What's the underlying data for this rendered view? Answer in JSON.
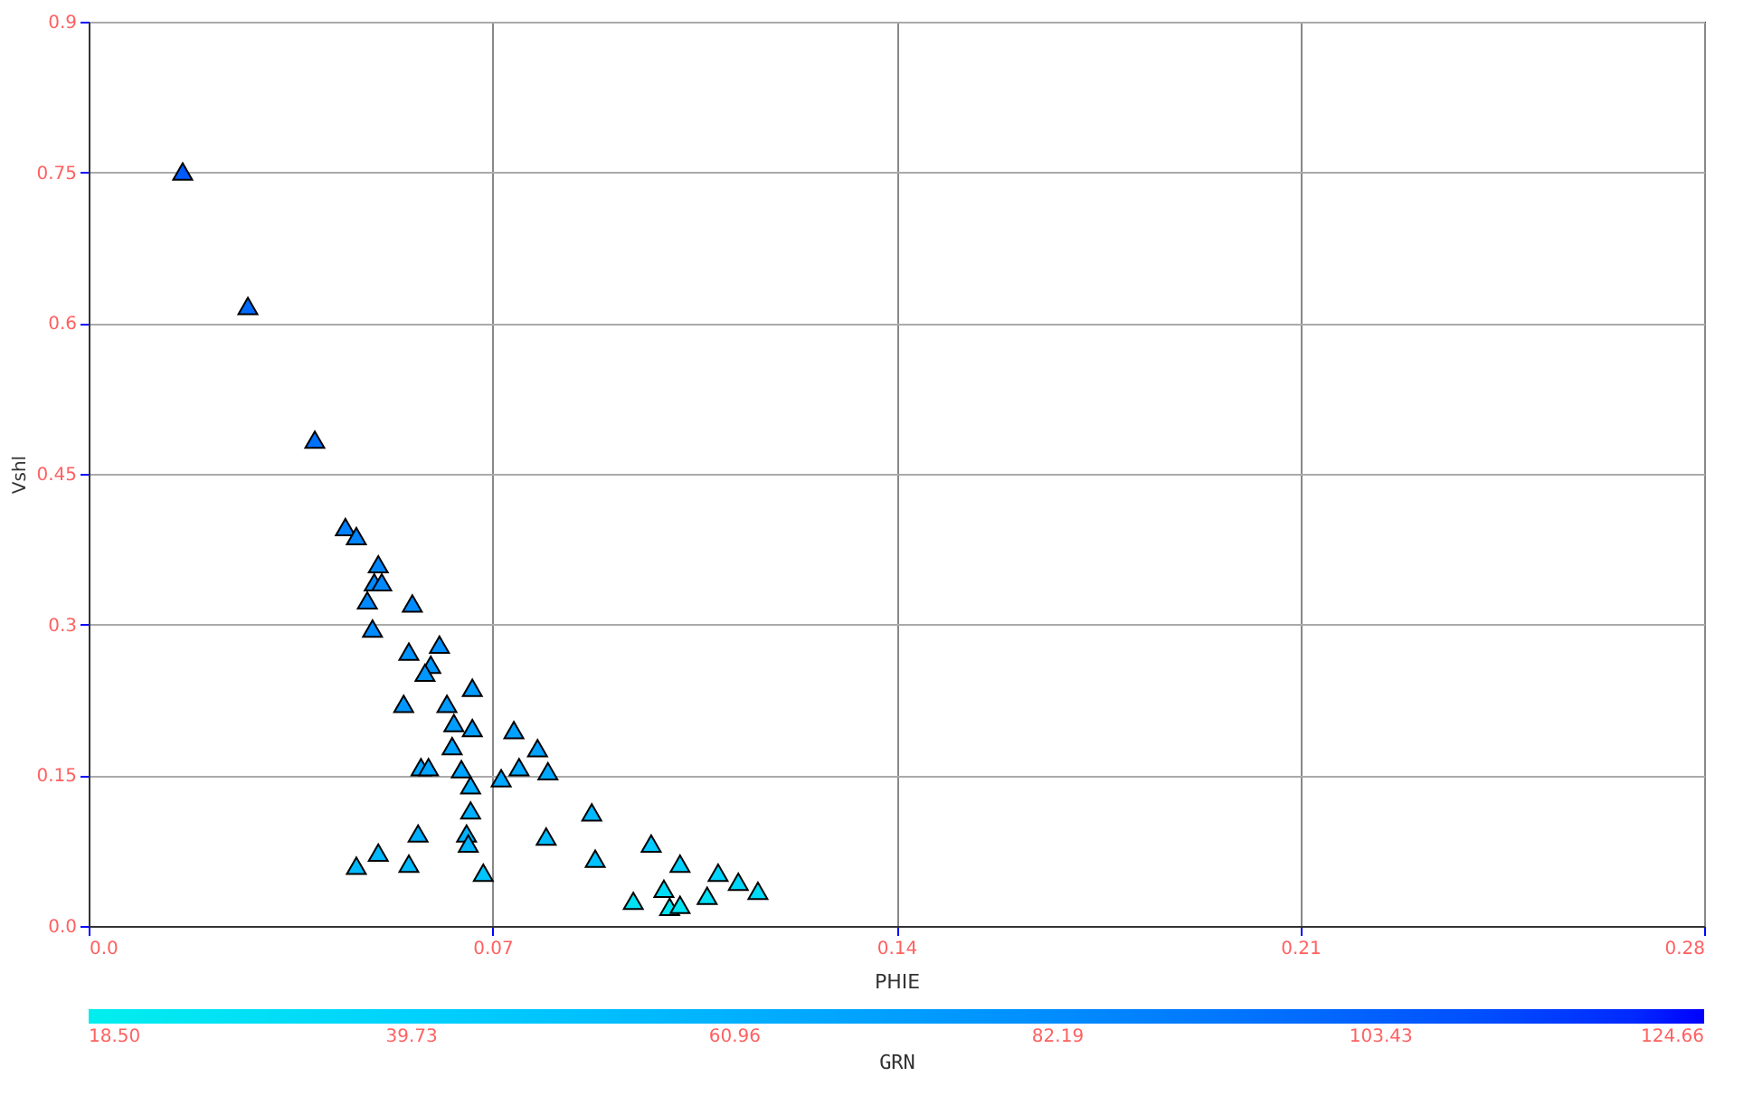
{
  "chart_data": {
    "type": "scatter",
    "xlabel": "PHIE",
    "ylabel": "Vshl",
    "clabel": "GRN",
    "xlim": [
      0,
      0.28
    ],
    "ylim": [
      0,
      0.9
    ],
    "xticks": [
      {
        "value": 0,
        "label": "0.0"
      },
      0.07,
      0.14,
      0.21,
      0.28
    ],
    "yticks": [
      {
        "value": 0,
        "label": "0.0"
      },
      0.15,
      0.3,
      0.45,
      0.6,
      0.75,
      0.9
    ],
    "clim": [
      18.5,
      124.66
    ],
    "cticks": [
      {
        "value": 18.5,
        "label": "18.50"
      },
      39.73,
      60.96,
      82.19,
      103.43,
      124.66
    ],
    "grid": true,
    "marker": "triangle",
    "series": [
      {
        "x": [
          0.0163,
          0.0276,
          0.0392,
          0.0445,
          0.0464,
          0.0502,
          0.0495,
          0.0508,
          0.0483,
          0.0561,
          0.0492,
          0.0555,
          0.0608,
          0.0593,
          0.0583,
          0.0665,
          0.0546,
          0.0621,
          0.0633,
          0.0665,
          0.0737,
          0.0778,
          0.063,
          0.0576,
          0.0589,
          0.0646,
          0.0746,
          0.0796,
          0.0715,
          0.0662,
          0.0662,
          0.0872,
          0.0571,
          0.0655,
          0.0658,
          0.0793,
          0.0502,
          0.0878,
          0.0464,
          0.0555,
          0.0975,
          0.0684,
          0.1025,
          0.1091,
          0.1126,
          0.116,
          0.1072,
          0.0997,
          0.0944,
          0.1007,
          0.1025
        ],
        "values": [
          0.751,
          0.617,
          0.484,
          0.397,
          0.388,
          0.36,
          0.342,
          0.342,
          0.324,
          0.321,
          0.296,
          0.273,
          0.28,
          0.26,
          0.252,
          0.237,
          0.221,
          0.221,
          0.202,
          0.197,
          0.195,
          0.177,
          0.179,
          0.158,
          0.158,
          0.156,
          0.158,
          0.154,
          0.147,
          0.14,
          0.115,
          0.113,
          0.092,
          0.092,
          0.082,
          0.089,
          0.073,
          0.067,
          0.06,
          0.062,
          0.082,
          0.053,
          0.062,
          0.053,
          0.044,
          0.035,
          0.03,
          0.037,
          0.025,
          0.019,
          0.021
        ],
        "cvalues": [
          105,
          98,
          95,
          88,
          86,
          85,
          84,
          84,
          84,
          82,
          82,
          78,
          80,
          76,
          76,
          74,
          76,
          74,
          72,
          72,
          70,
          70,
          70,
          68,
          68,
          68,
          66,
          66,
          66,
          64,
          62,
          56,
          62,
          60,
          58,
          54,
          56,
          50,
          55,
          54,
          45,
          48,
          40,
          38,
          35,
          33,
          30,
          32,
          28,
          26,
          26
        ]
      }
    ]
  }
}
